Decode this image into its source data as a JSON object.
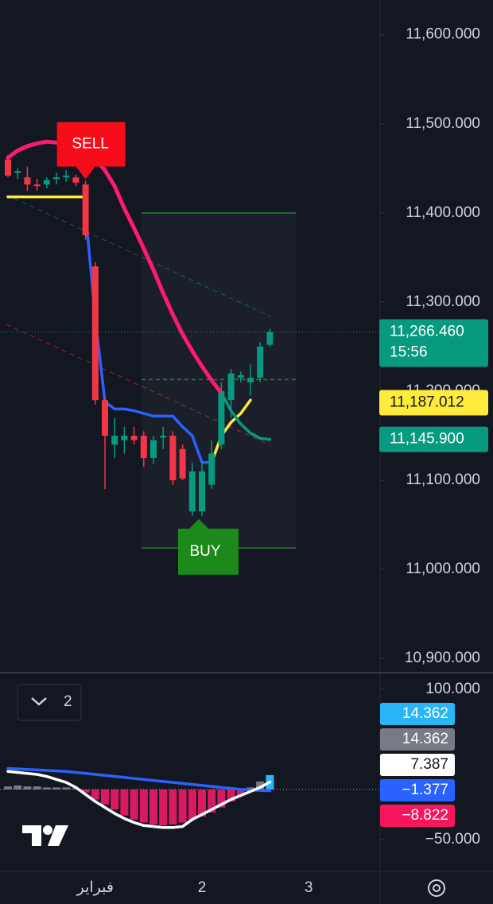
{
  "chart_data": [
    {
      "type": "candlestick",
      "ylim": [
        10885,
        11639
      ],
      "yticks": [
        {
          "value": 10900,
          "label": "10,900.000"
        },
        {
          "value": 11000,
          "label": "11,000.000"
        },
        {
          "value": 11100,
          "label": "11,100.000"
        },
        {
          "value": 11200,
          "label": "11,200.000"
        },
        {
          "value": 11300,
          "label": "11,300.000"
        },
        {
          "value": 11400,
          "label": "11,400.000"
        },
        {
          "value": 11500,
          "label": "11,500.000"
        },
        {
          "value": 11600,
          "label": "11,600.000"
        }
      ],
      "xticks": [
        {
          "value": 9,
          "label": "فبراير"
        },
        {
          "value": 20,
          "label": "2"
        },
        {
          "value": 31,
          "label": "3"
        }
      ],
      "open": [
        11460,
        11445,
        11440,
        11432,
        11432,
        11438,
        11440,
        11440,
        11432,
        11340,
        11190,
        11140,
        11145,
        11150,
        11150,
        11125,
        11148,
        11150,
        11135,
        11065,
        11065,
        11095,
        11140,
        11190,
        11215,
        11210,
        11215,
        11252
      ],
      "high": [
        11465,
        11450,
        11452,
        11438,
        11440,
        11445,
        11448,
        11443,
        11436,
        11345,
        11192,
        11170,
        11160,
        11160,
        11155,
        11150,
        11160,
        11155,
        11140,
        11120,
        11120,
        11145,
        11210,
        11225,
        11222,
        11230,
        11255,
        11270
      ],
      "low": [
        11440,
        11438,
        11425,
        11425,
        11428,
        11432,
        11435,
        11430,
        11370,
        11185,
        11090,
        11125,
        11130,
        11140,
        11115,
        11118,
        11135,
        11095,
        11100,
        11060,
        11060,
        11090,
        11135,
        11170,
        11210,
        11195,
        11210,
        11250
      ],
      "close": [
        11442,
        11447,
        11432,
        11430,
        11437,
        11440,
        11442,
        11434,
        11375,
        11190,
        11150,
        11150,
        11150,
        11145,
        11125,
        11145,
        11150,
        11100,
        11102,
        11110,
        11110,
        11130,
        11200,
        11220,
        11218,
        11215,
        11250,
        11266.46
      ],
      "up_color": "#089981",
      "down_color": "#f23645",
      "lines": [
        {
          "color": "#ff1a6c",
          "values": [
            11462,
            11470,
            11475,
            11478,
            11480,
            11479,
            11477,
            11473,
            11468,
            11460,
            11448,
            11430,
            11405,
            11383,
            11360,
            11336,
            11310,
            11286,
            11264,
            11245,
            11228,
            11212,
            11198,
            null,
            null,
            null,
            null,
            null
          ]
        },
        {
          "color": "#089981",
          "values": [
            null,
            null,
            null,
            null,
            null,
            null,
            null,
            null,
            null,
            null,
            null,
            null,
            null,
            null,
            null,
            null,
            null,
            null,
            null,
            null,
            null,
            null,
            11198,
            11178,
            11163,
            11153,
            11147,
            11145.9
          ]
        },
        {
          "color": "#2962ff",
          "values": [
            null,
            null,
            null,
            null,
            null,
            null,
            null,
            null,
            11400,
            11282,
            11188,
            11180,
            11180,
            11178,
            11175,
            11172,
            11172,
            11172,
            11160,
            11150,
            11120,
            11120,
            null,
            null,
            null,
            null,
            null,
            null
          ]
        },
        {
          "color": "#ffeb3b",
          "values": [
            11418,
            11418,
            11418,
            11418,
            11418,
            11418,
            11418,
            11418,
            11418,
            null,
            null,
            null,
            null,
            null,
            null,
            null,
            null,
            null,
            null,
            null,
            null,
            11120,
            11150,
            11165,
            11175,
            11190,
            null,
            null
          ]
        }
      ],
      "levels": [
        11400,
        11213,
        11024
      ],
      "signals": [
        {
          "label": "SELL",
          "index": 8,
          "color": "#f70d1a"
        },
        {
          "label": "BUY",
          "index": 20,
          "color": "#1b8a1b"
        }
      ],
      "price_labels": [
        {
          "value": 11266.46,
          "label": "11,266.460",
          "color": "#089981",
          "sub": "15:56"
        },
        {
          "value": 11187.012,
          "label": "11,187.012",
          "color": "#ffeb3b"
        },
        {
          "value": 11145.9,
          "label": "11,145.900",
          "color": "#089981"
        }
      ]
    },
    {
      "type": "histogram",
      "ylim": [
        -81,
        115
      ],
      "yticks": [
        {
          "value": 100,
          "label": "100.000"
        },
        {
          "value": -50,
          "label": "−50.000"
        }
      ],
      "values": [
        3,
        4,
        3,
        3,
        2,
        2,
        2,
        1,
        -3,
        -10,
        -15,
        -20,
        -26,
        -30,
        -33,
        -35,
        -36,
        -35,
        -33,
        -30,
        -27,
        -23,
        -18,
        -12,
        -6,
        2,
        8,
        14.362
      ],
      "positive_color": "#787b86",
      "negative_color": "#d81b60",
      "last_color": "#29b6f6",
      "lines": [
        {
          "color": "#2962ff",
          "values": [
            21,
            20.5,
            20,
            19.5,
            19,
            18.5,
            18,
            17,
            16,
            15,
            14,
            13,
            12,
            11,
            10,
            9,
            8,
            7,
            6,
            5,
            4,
            3,
            2,
            1,
            0,
            -0.5,
            -1,
            -1.377
          ]
        },
        {
          "color": "#ffffff",
          "values": [
            18,
            17,
            16,
            15,
            13,
            10,
            7,
            2,
            -5,
            -12,
            -18,
            -24,
            -29,
            -33,
            -36,
            -37,
            -38,
            -38,
            -37,
            -30,
            -25,
            -20,
            -15,
            -10,
            -6,
            -2,
            2,
            7.387
          ]
        }
      ],
      "badges": [
        {
          "value": 14.362,
          "label": "14.362",
          "color": "#29b6f6"
        },
        {
          "value": 14.362,
          "label": "14.362",
          "color": "#787b86"
        },
        {
          "value": 7.387,
          "label": "7.387",
          "color": "#ffffff"
        },
        {
          "value": -1.377,
          "label": "−1.377",
          "color": "#2962ff"
        },
        {
          "value": -8.822,
          "label": "−8.822",
          "color": "#f7155e"
        }
      ],
      "selector": "2"
    }
  ]
}
